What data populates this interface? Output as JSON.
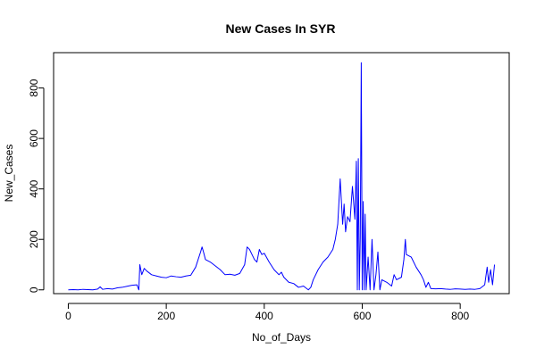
{
  "chart_data": {
    "type": "line",
    "title": "New Cases In SYR",
    "xlabel": "No_of_Days",
    "ylabel": "New_Cases",
    "xlim": [
      -30,
      900
    ],
    "ylim": [
      -15,
      940
    ],
    "x_ticks": [
      0,
      200,
      400,
      600,
      800
    ],
    "y_ticks": [
      0,
      200,
      400,
      600,
      800
    ],
    "grid": false,
    "series": [
      {
        "color": "#0000ff",
        "points": [
          [
            0,
            0
          ],
          [
            10,
            1
          ],
          [
            20,
            0
          ],
          [
            30,
            2
          ],
          [
            40,
            1
          ],
          [
            50,
            0
          ],
          [
            60,
            3
          ],
          [
            65,
            12
          ],
          [
            70,
            2
          ],
          [
            80,
            5
          ],
          [
            90,
            3
          ],
          [
            100,
            8
          ],
          [
            110,
            10
          ],
          [
            120,
            14
          ],
          [
            130,
            18
          ],
          [
            140,
            20
          ],
          [
            144,
            0
          ],
          [
            146,
            100
          ],
          [
            150,
            60
          ],
          [
            155,
            85
          ],
          [
            160,
            75
          ],
          [
            170,
            60
          ],
          [
            180,
            55
          ],
          [
            190,
            50
          ],
          [
            200,
            48
          ],
          [
            210,
            55
          ],
          [
            220,
            52
          ],
          [
            230,
            50
          ],
          [
            240,
            55
          ],
          [
            250,
            58
          ],
          [
            260,
            90
          ],
          [
            265,
            120
          ],
          [
            270,
            150
          ],
          [
            273,
            170
          ],
          [
            276,
            150
          ],
          [
            280,
            120
          ],
          [
            290,
            110
          ],
          [
            300,
            95
          ],
          [
            310,
            80
          ],
          [
            320,
            60
          ],
          [
            330,
            62
          ],
          [
            340,
            58
          ],
          [
            350,
            65
          ],
          [
            360,
            100
          ],
          [
            365,
            170
          ],
          [
            370,
            160
          ],
          [
            375,
            140
          ],
          [
            380,
            120
          ],
          [
            385,
            110
          ],
          [
            390,
            160
          ],
          [
            395,
            140
          ],
          [
            400,
            145
          ],
          [
            410,
            110
          ],
          [
            420,
            80
          ],
          [
            430,
            60
          ],
          [
            435,
            70
          ],
          [
            440,
            50
          ],
          [
            450,
            30
          ],
          [
            460,
            25
          ],
          [
            470,
            10
          ],
          [
            480,
            15
          ],
          [
            490,
            0
          ],
          [
            495,
            10
          ],
          [
            500,
            40
          ],
          [
            510,
            80
          ],
          [
            520,
            110
          ],
          [
            530,
            130
          ],
          [
            540,
            160
          ],
          [
            545,
            200
          ],
          [
            550,
            260
          ],
          [
            555,
            440
          ],
          [
            560,
            260
          ],
          [
            563,
            340
          ],
          [
            566,
            230
          ],
          [
            570,
            290
          ],
          [
            575,
            270
          ],
          [
            580,
            410
          ],
          [
            585,
            280
          ],
          [
            588,
            510
          ],
          [
            590,
            0
          ],
          [
            592,
            520
          ],
          [
            594,
            0
          ],
          [
            596,
            210
          ],
          [
            598,
            900
          ],
          [
            600,
            0
          ],
          [
            602,
            350
          ],
          [
            604,
            0
          ],
          [
            606,
            300
          ],
          [
            608,
            0
          ],
          [
            612,
            130
          ],
          [
            616,
            0
          ],
          [
            620,
            200
          ],
          [
            624,
            0
          ],
          [
            628,
            60
          ],
          [
            632,
            150
          ],
          [
            636,
            0
          ],
          [
            640,
            40
          ],
          [
            650,
            30
          ],
          [
            660,
            15
          ],
          [
            665,
            60
          ],
          [
            670,
            40
          ],
          [
            680,
            50
          ],
          [
            685,
            120
          ],
          [
            688,
            200
          ],
          [
            690,
            140
          ],
          [
            700,
            130
          ],
          [
            710,
            90
          ],
          [
            720,
            60
          ],
          [
            725,
            40
          ],
          [
            730,
            10
          ],
          [
            735,
            30
          ],
          [
            740,
            5
          ],
          [
            750,
            4
          ],
          [
            760,
            5
          ],
          [
            770,
            3
          ],
          [
            780,
            2
          ],
          [
            790,
            4
          ],
          [
            800,
            3
          ],
          [
            810,
            2
          ],
          [
            820,
            3
          ],
          [
            830,
            2
          ],
          [
            840,
            5
          ],
          [
            850,
            20
          ],
          [
            855,
            90
          ],
          [
            858,
            30
          ],
          [
            862,
            80
          ],
          [
            866,
            20
          ],
          [
            870,
            100
          ]
        ]
      }
    ]
  }
}
